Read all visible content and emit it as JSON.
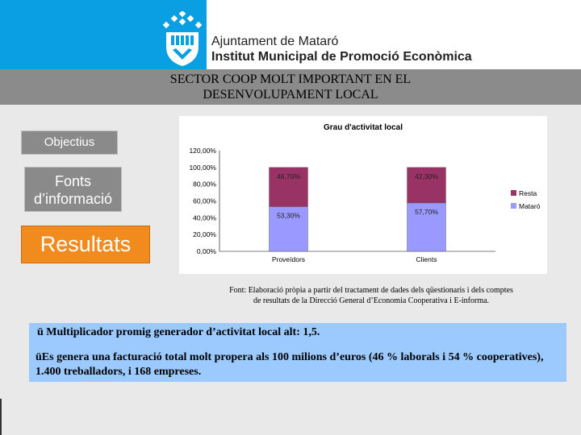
{
  "header": {
    "org_line1": "Ajuntament de Mataró",
    "org_line2": "Institut Municipal de Promoció Econòmica"
  },
  "title": {
    "line1": "SECTOR COOP MOLT IMPORTANT EN EL",
    "line2": "DESENVOLUPAMENT LOCAL"
  },
  "nav": {
    "objectius": "Objectius",
    "fonts_line1": "Fonts",
    "fonts_line2": "d’informació",
    "resultats": "Resultats"
  },
  "colors": {
    "header_blue": "#0a9fe3",
    "active_orange": "#f18b1e",
    "resta": "#993366",
    "mataro": "#9999ff",
    "note_blue": "#9ccaff"
  },
  "chart_data": {
    "type": "bar",
    "stacked": true,
    "title": "Grau d'activitat local",
    "categories": [
      "Proveïdors",
      "Clients"
    ],
    "series": [
      {
        "name": "Mataró",
        "values": [
          53.3,
          57.7
        ],
        "labels": [
          "53,30%",
          "57,70%"
        ],
        "color": "#9999ff"
      },
      {
        "name": "Resta",
        "values": [
          46.7,
          42.3
        ],
        "labels": [
          "46,70%",
          "42,30%"
        ],
        "color": "#993366"
      }
    ],
    "ylim": [
      0,
      120
    ],
    "yticks": [
      "0,00%",
      "20,00%",
      "40,00%",
      "60,00%",
      "80,00%",
      "100,00%",
      "120,00%"
    ],
    "legend": [
      "Resta",
      "Mataró"
    ],
    "legend_position": "right"
  },
  "source": {
    "line1": "Font: Elaboració pròpia a partir del tractament de dades dels qüestionaris i dels comptes",
    "line2": "de resultats de la Direcció General d’Economia Cooperativa i E-informa."
  },
  "notes": {
    "line1": "ü Multiplicador promig generador d’activitat  local alt: 1,5.",
    "line2": "üEs genera una facturació total molt propera als 100 milions d’euros (46 % laborals i 54 % cooperatives), 1.400 treballadors, i 168 empreses."
  }
}
